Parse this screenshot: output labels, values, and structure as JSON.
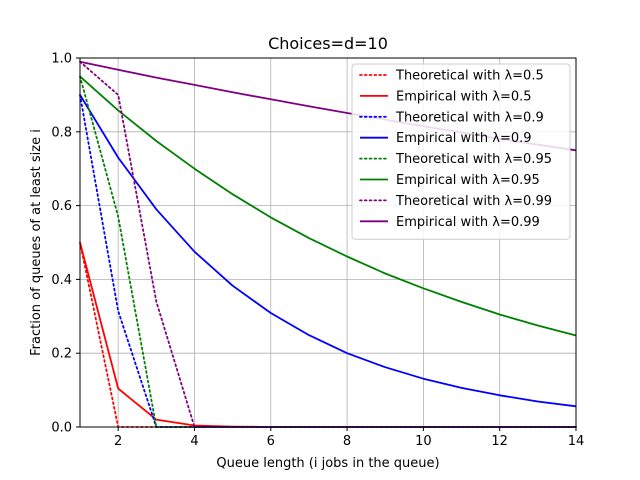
{
  "chart_data": {
    "type": "line",
    "title": "Choices=d=10",
    "xlabel": "Queue length (i jobs in the queue)",
    "ylabel": "Fraction of queues of at least size i",
    "xlim": [
      1,
      14
    ],
    "ylim": [
      0,
      1
    ],
    "xticks": [
      2,
      4,
      6,
      8,
      10,
      12,
      14
    ],
    "yticks": [
      0.0,
      0.2,
      0.4,
      0.6,
      0.8,
      1.0
    ],
    "ytick_labels": [
      "0.0",
      "0.2",
      "0.4",
      "0.6",
      "0.8",
      "1.0"
    ],
    "grid": true,
    "legend_position": "top-right",
    "series": [
      {
        "name": "Theoretical with λ=0.5",
        "color": "#ff0000",
        "style": "dotted",
        "x": [
          1,
          2,
          3,
          4,
          5,
          6,
          7,
          8,
          9,
          10,
          11,
          12,
          13,
          14
        ],
        "y": [
          0.5,
          0.0,
          0.0,
          0.0,
          0.0,
          0.0,
          0.0,
          0.0,
          0.0,
          0.0,
          0.0,
          0.0,
          0.0,
          0.0
        ]
      },
      {
        "name": "Empirical with λ=0.5",
        "color": "#ff0000",
        "style": "solid",
        "x": [
          1,
          2,
          3,
          4,
          5,
          6,
          7,
          8,
          9,
          10,
          11,
          12,
          13,
          14
        ],
        "y": [
          0.5,
          0.104,
          0.02,
          0.004,
          0.001,
          0.0,
          0.0,
          0.0,
          0.0,
          0.0,
          0.0,
          0.0,
          0.0,
          0.0
        ]
      },
      {
        "name": "Theoretical with λ=0.9",
        "color": "#0000ff",
        "style": "dotted",
        "x": [
          1,
          2,
          3,
          4,
          5,
          6,
          7,
          8,
          9,
          10,
          11,
          12,
          13,
          14
        ],
        "y": [
          0.9,
          0.314,
          0.0,
          0.0,
          0.0,
          0.0,
          0.0,
          0.0,
          0.0,
          0.0,
          0.0,
          0.0,
          0.0,
          0.0
        ]
      },
      {
        "name": "Empirical with λ=0.9",
        "color": "#0000ff",
        "style": "solid",
        "x": [
          1,
          2,
          3,
          4,
          5,
          6,
          7,
          8,
          9,
          10,
          11,
          12,
          13,
          14
        ],
        "y": [
          0.9,
          0.73,
          0.59,
          0.475,
          0.383,
          0.309,
          0.249,
          0.2,
          0.162,
          0.131,
          0.106,
          0.086,
          0.069,
          0.056
        ]
      },
      {
        "name": "Theoretical with λ=0.95",
        "color": "#008000",
        "style": "dotted",
        "x": [
          1,
          2,
          3,
          4,
          5,
          6,
          7,
          8,
          9,
          10,
          11,
          12,
          13,
          14
        ],
        "y": [
          0.95,
          0.57,
          0.0,
          0.0,
          0.0,
          0.0,
          0.0,
          0.0,
          0.0,
          0.0,
          0.0,
          0.0,
          0.0,
          0.0
        ]
      },
      {
        "name": "Empirical with λ=0.95",
        "color": "#008000",
        "style": "solid",
        "x": [
          1,
          2,
          3,
          4,
          5,
          6,
          7,
          8,
          9,
          10,
          11,
          12,
          13,
          14
        ],
        "y": [
          0.95,
          0.858,
          0.775,
          0.7,
          0.631,
          0.568,
          0.512,
          0.462,
          0.416,
          0.376,
          0.339,
          0.305,
          0.275,
          0.248
        ]
      },
      {
        "name": "Theoretical with λ=0.99",
        "color": "#800080",
        "style": "dotted",
        "x": [
          1,
          2,
          3,
          4,
          5,
          6,
          7,
          8,
          9,
          10,
          11,
          12,
          13,
          14
        ],
        "y": [
          0.99,
          0.9,
          0.34,
          0.0,
          0.0,
          0.0,
          0.0,
          0.0,
          0.0,
          0.0,
          0.0,
          0.0,
          0.0,
          0.0
        ]
      },
      {
        "name": "Empirical with λ=0.99",
        "color": "#800080",
        "style": "solid",
        "x": [
          1,
          2,
          3,
          4,
          5,
          6,
          7,
          8,
          9,
          10,
          11,
          12,
          13,
          14
        ],
        "y": [
          0.99,
          0.968,
          0.947,
          0.927,
          0.907,
          0.888,
          0.869,
          0.851,
          0.833,
          0.815,
          0.798,
          0.781,
          0.765,
          0.75
        ]
      }
    ]
  }
}
